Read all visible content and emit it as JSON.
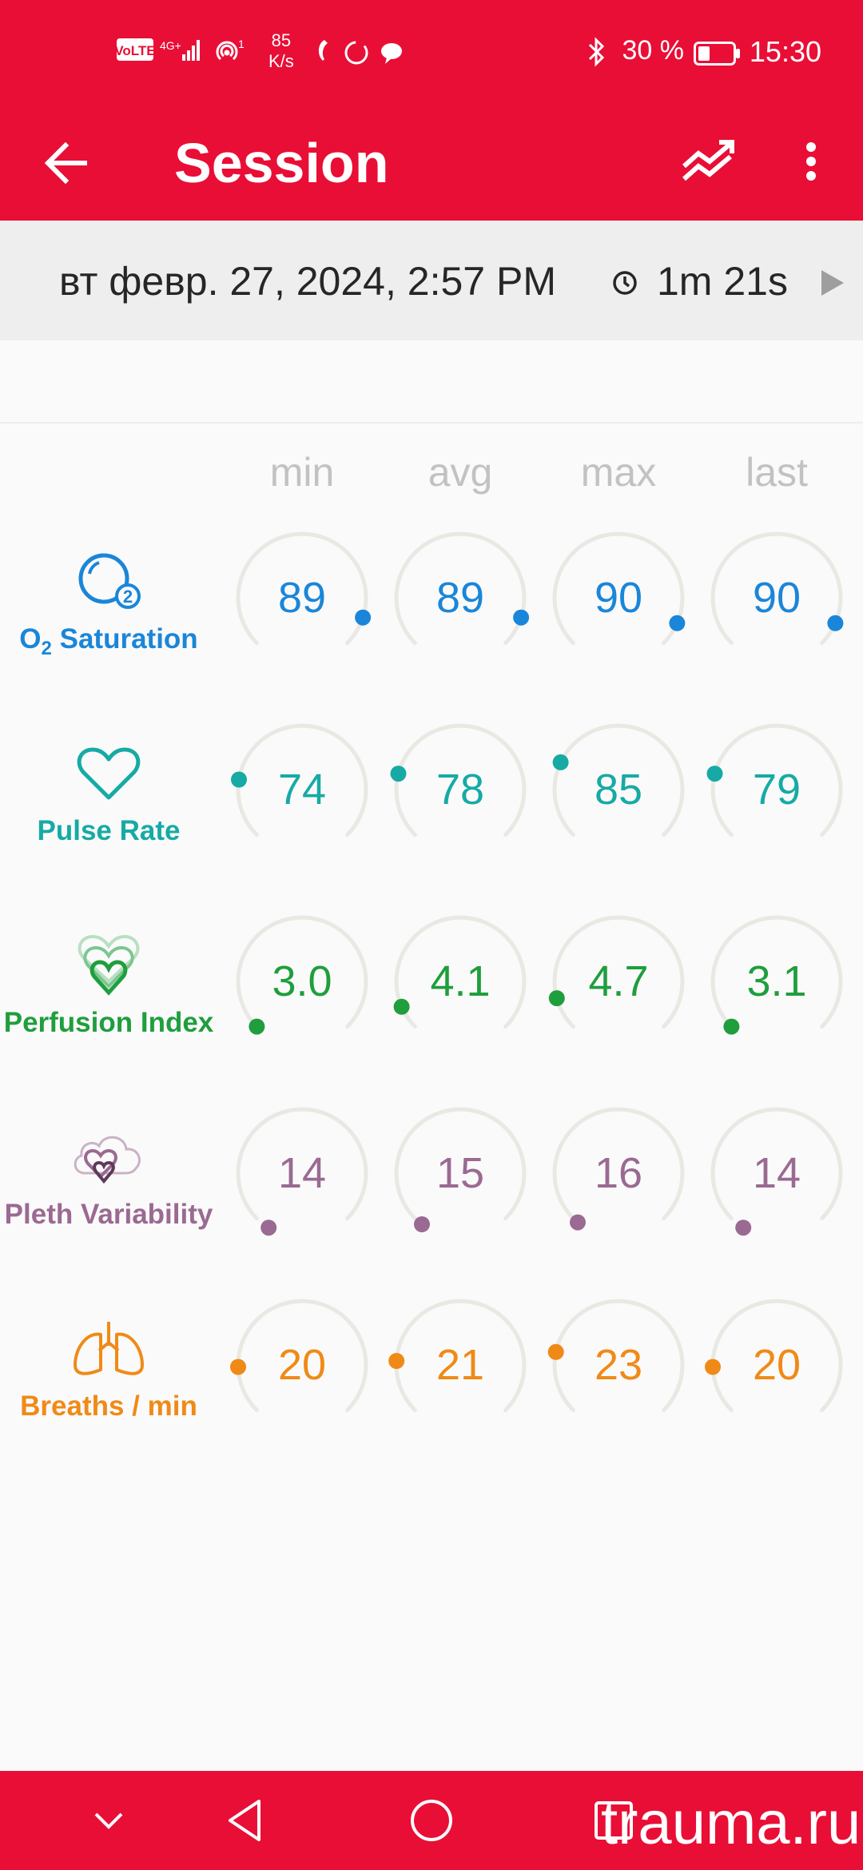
{
  "status_bar": {
    "time": "15:30",
    "battery": "30 %",
    "net_speed_value": "85",
    "net_speed_unit": "K/s",
    "icons": [
      "volte-icon",
      "signal-icon",
      "hotspot-icon",
      "viber-icon",
      "sync-icon",
      "chat-icon",
      "bluetooth-icon",
      "battery-icon"
    ]
  },
  "app_bar": {
    "title": "Session",
    "icons": [
      "back-arrow-icon",
      "trend-chart-icon",
      "more-vert-icon"
    ]
  },
  "session": {
    "date": "вт февр. 27, 2024, 2:57 PM",
    "duration": "1m 21s"
  },
  "columns": [
    "min",
    "avg",
    "max",
    "last"
  ],
  "metrics": [
    {
      "id": "o2",
      "label_main": "O",
      "label_sub": "2",
      "label_rest": " Saturation",
      "color": "#1a86d9",
      "icon": "o2-bubble-icon",
      "values": [
        "89",
        "89",
        "90",
        "90"
      ],
      "levels": [
        0.9,
        0.9,
        0.92,
        0.92
      ]
    },
    {
      "id": "pulse",
      "label": "Pulse Rate",
      "color": "#17aaa5",
      "icon": "heart-outline-icon",
      "values": [
        "74",
        "78",
        "85",
        "79"
      ],
      "levels": [
        0.2,
        0.22,
        0.26,
        0.22
      ]
    },
    {
      "id": "perfusion",
      "label": "Perfusion Index",
      "color": "#1f9e3d",
      "icon": "layered-hearts-icon",
      "values": [
        "3.0",
        "4.1",
        "4.7",
        "3.1"
      ],
      "levels": [
        0.0,
        0.08,
        0.11,
        0.0
      ]
    },
    {
      "id": "pleth",
      "label": "Pleth Variability",
      "color": "#9a6a92",
      "icon": "cloud-hearts-icon",
      "values": [
        "14",
        "15",
        "16",
        "14"
      ],
      "levels": [
        -0.05,
        -0.03,
        -0.02,
        -0.05
      ]
    },
    {
      "id": "breaths",
      "label": "Breaths / min",
      "color": "#f08a17",
      "icon": "lungs-icon",
      "values": [
        "20",
        "21",
        "23",
        "20"
      ],
      "levels": [
        0.16,
        0.18,
        0.21,
        0.16
      ]
    }
  ],
  "nav_bar": {
    "icons": [
      "chevron-down-icon",
      "nav-back-icon",
      "nav-home-icon",
      "nav-recents-icon"
    ]
  },
  "watermark": "trauma.ru"
}
